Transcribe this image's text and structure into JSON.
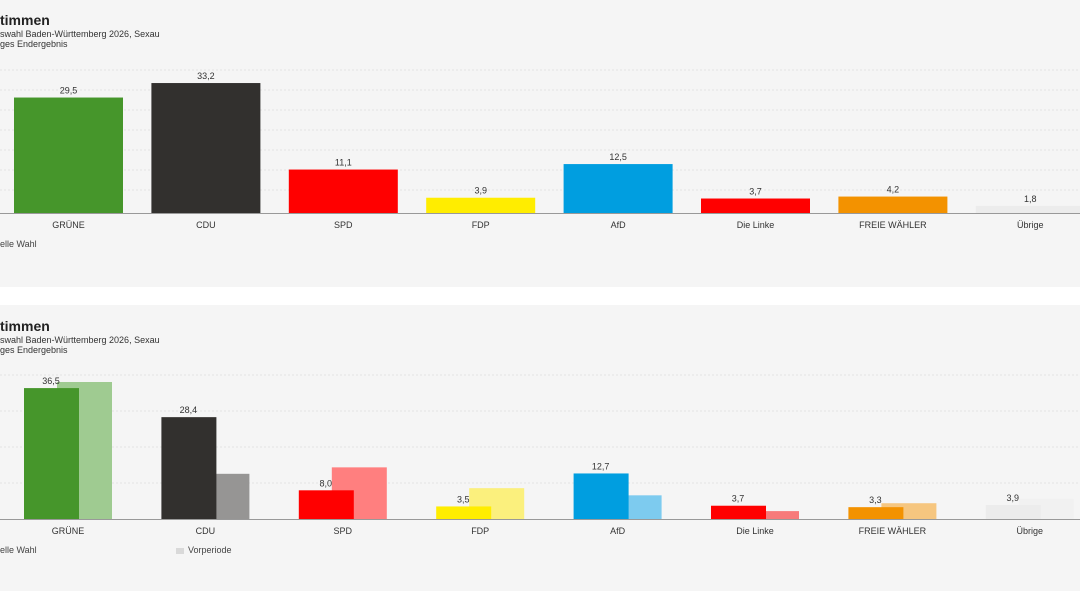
{
  "charts": [
    {
      "title": "timmen",
      "subtitle_line1": "swahl Baden-Württemberg 2026, Sexau",
      "subtitle_line2": "ges Endergebnis",
      "legend_current": "elle Wahl"
    },
    {
      "title": "timmen",
      "subtitle_line1": "swahl Baden-Württemberg 2026, Sexau",
      "subtitle_line2": "ges Endergebnis",
      "legend_current": "elle Wahl",
      "legend_previous": "Vorperiode"
    }
  ],
  "chart_data": [
    {
      "type": "bar",
      "categories": [
        "GRÜNE",
        "CDU",
        "SPD",
        "FDP",
        "AfD",
        "Die Linke",
        "FREIE WÄHLER",
        "Übrige"
      ],
      "values": [
        29.5,
        33.2,
        11.1,
        3.9,
        12.5,
        3.7,
        4.2,
        1.8
      ],
      "value_labels": [
        "29,5",
        "33,2",
        "11,1",
        "3,9",
        "12,5",
        "3,7",
        "4,2",
        "1,8"
      ],
      "colors": [
        "#46962b",
        "#32302e",
        "#ff0000",
        "#ffed00",
        "#009ee0",
        "#ff0000",
        "#f39200",
        "#ececec"
      ],
      "ylim": [
        0,
        35
      ],
      "grid": true
    },
    {
      "type": "bar",
      "categories": [
        "GRÜNE",
        "CDU",
        "SPD",
        "FDP",
        "AfD",
        "Die Linke",
        "FREIE WÄHLER",
        "Übrige"
      ],
      "series": [
        {
          "values": [
            36.5,
            28.4,
            8.0,
            3.5,
            12.7,
            3.7,
            3.3,
            3.9
          ],
          "value_labels": [
            "36,5",
            "28,4",
            "8,0",
            "3,5",
            "12,7",
            "3,7",
            "3,3",
            "3,9"
          ]
        },
        {
          "name": "Vorperiode",
          "values": [
            38.2,
            12.6,
            14.4,
            8.6,
            6.6,
            2.2,
            4.4,
            5.6
          ]
        }
      ],
      "colors": [
        "#46962b",
        "#32302e",
        "#ff0000",
        "#ffed00",
        "#009ee0",
        "#ff0000",
        "#f39200",
        "#ececec"
      ],
      "previous_colors": [
        "#9fcb91",
        "#969594",
        "#ff7f7f",
        "#fbf07d",
        "#7dcbef",
        "#f77a7a",
        "#f6c67f",
        "#f1f1f1"
      ],
      "ylim": [
        0,
        38.2
      ],
      "grid": true
    }
  ]
}
